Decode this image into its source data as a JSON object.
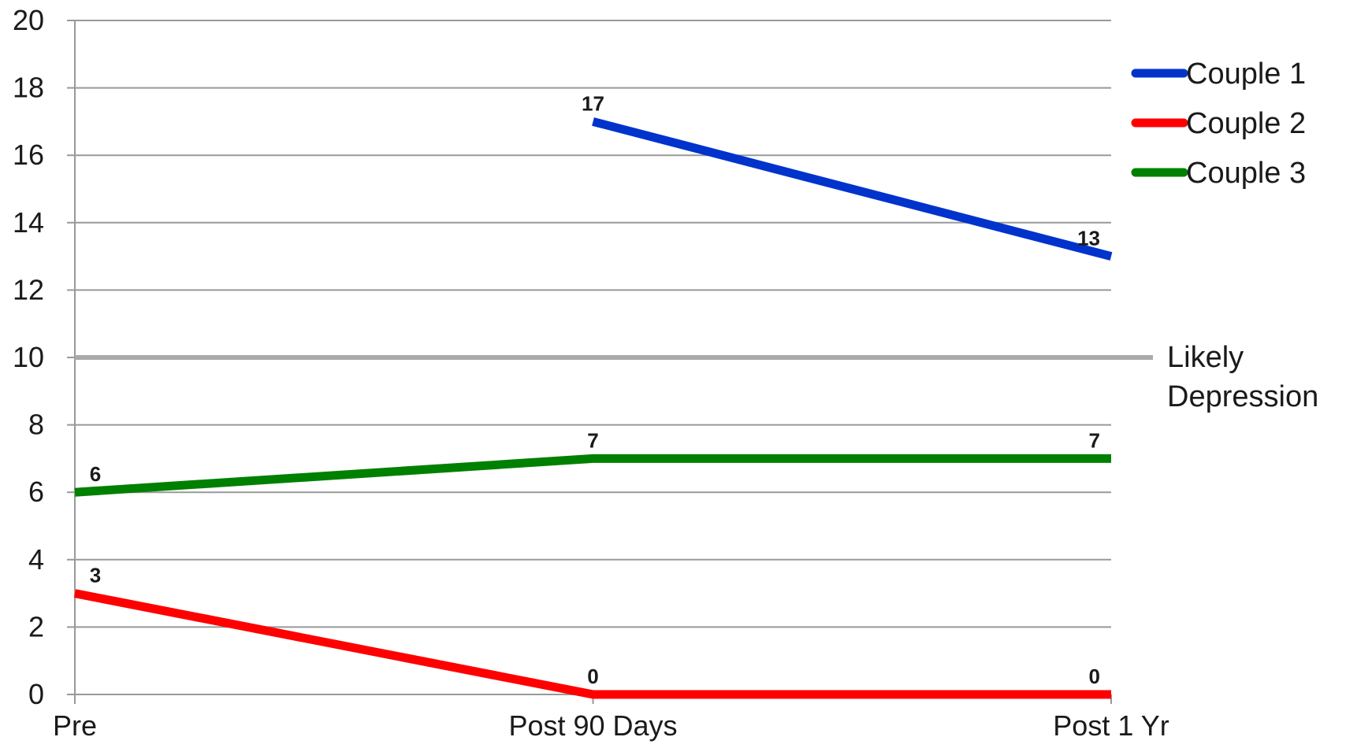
{
  "chart_data": {
    "type": "line",
    "categories": [
      "Pre",
      "Post 90 Days",
      "Post 1 Yr"
    ],
    "ylim": [
      0,
      20
    ],
    "yticks": [
      0,
      2,
      4,
      6,
      8,
      10,
      12,
      14,
      16,
      18,
      20
    ],
    "grid": true,
    "legend_position": "right",
    "series": [
      {
        "name": "Couple 1",
        "color": "#0033cc",
        "values": [
          null,
          17,
          13
        ]
      },
      {
        "name": "Couple 2",
        "color": "#ff0000",
        "values": [
          3,
          0,
          0
        ]
      },
      {
        "name": "Couple 3",
        "color": "#008000",
        "values": [
          6,
          7,
          7
        ]
      }
    ],
    "reference_line": {
      "value": 10,
      "label_lines": [
        "Likely",
        "Depression"
      ],
      "color": "#aaaaaa"
    },
    "colors": {
      "grid": "#999999",
      "axis": "#999999"
    }
  }
}
